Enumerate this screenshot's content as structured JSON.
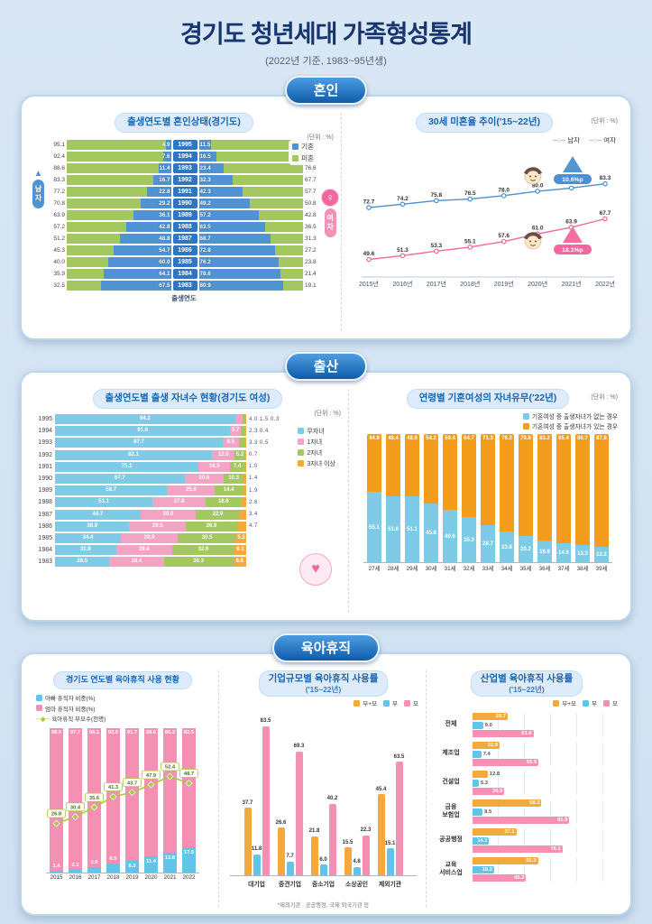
{
  "page": {
    "title": "경기도 청년세대 가족형성통계",
    "subtitle": "(2022년 기준, 1983~95년생)"
  },
  "sections": {
    "marriage_badge": "혼인",
    "birth_badge": "출산",
    "leave_badge": "육아휴직"
  },
  "icons": {
    "male_arrow": "▲",
    "female_symbol": "♀",
    "family_heart": "♥",
    "line_circle_marker": "─○─",
    "line_diamond_marker": "─◆─"
  },
  "colors": {
    "married_blue": "#4f93d4",
    "unmarried_green": "#a3c85f",
    "male_line": "#4a90d2",
    "female_line": "#f2679d",
    "no_child_blue": "#7ecbe8",
    "child1_pink": "#f3a3c3",
    "child2_green": "#a3c85f",
    "child3_orange": "#f6a93b",
    "has_child_orange": "#f49d1d",
    "father_blue": "#62c4e8",
    "mother_pink": "#f590b5",
    "parents_line_green": "#a9c83d",
    "both_orange": "#f6a93b"
  },
  "chart_data": [
    {
      "id": "marriage-status-by-birth-year",
      "type": "bar",
      "title": "출생연도별 혼인상태(경기도)",
      "unit": "(단위 : %)",
      "legend": [
        "기혼",
        "미혼"
      ],
      "left_group": "남자",
      "right_group": "여자",
      "xlabel": "출생연도",
      "rows": [
        {
          "year": "1995",
          "male_unmarried": 95.1,
          "male_married": 4.9,
          "female_married": 11.5,
          "female_unmarried": 88.5
        },
        {
          "year": "1994",
          "male_unmarried": 92.4,
          "male_married": 7.6,
          "female_married": 16.5,
          "female_unmarried": 83.4
        },
        {
          "year": "1993",
          "male_unmarried": 88.6,
          "male_married": 11.4,
          "female_married": 23.4,
          "female_unmarried": 76.6
        },
        {
          "year": "1992",
          "male_unmarried": 83.3,
          "male_married": 16.7,
          "female_married": 32.3,
          "female_unmarried": 67.7
        },
        {
          "year": "1991",
          "male_unmarried": 77.2,
          "male_married": 22.8,
          "female_married": 42.3,
          "female_unmarried": 57.7
        },
        {
          "year": "1990",
          "male_unmarried": 70.8,
          "male_married": 29.2,
          "female_married": 49.2,
          "female_unmarried": 50.8
        },
        {
          "year": "1989",
          "male_unmarried": 63.9,
          "male_married": 36.1,
          "female_married": 57.2,
          "female_unmarried": 42.8
        },
        {
          "year": "1988",
          "male_unmarried": 57.2,
          "male_married": 42.8,
          "female_married": 63.5,
          "female_unmarried": 36.5
        },
        {
          "year": "1987",
          "male_unmarried": 51.2,
          "male_married": 48.8,
          "female_married": 68.7,
          "female_unmarried": 31.3
        },
        {
          "year": "1986",
          "male_unmarried": 45.3,
          "male_married": 54.7,
          "female_married": 72.8,
          "female_unmarried": 27.2
        },
        {
          "year": "1985",
          "male_unmarried": 40.0,
          "male_married": 60.0,
          "female_married": 76.2,
          "female_unmarried": 23.8
        },
        {
          "year": "1984",
          "male_unmarried": 35.9,
          "male_married": 64.1,
          "female_married": 78.6,
          "female_unmarried": 21.4
        },
        {
          "year": "1983",
          "male_unmarried": 32.5,
          "male_married": 67.5,
          "female_married": 80.9,
          "female_unmarried": 19.1
        }
      ]
    },
    {
      "id": "unmarried-rate-age30-trend",
      "type": "line",
      "title": "30세 미혼율 추이('15~22년)",
      "unit": "(단위 : %)",
      "x": [
        "2015년",
        "2016년",
        "2017년",
        "2018년",
        "2019년",
        "2020년",
        "2021년",
        "2022년"
      ],
      "series": [
        {
          "name": "남자",
          "values": [
            72.7,
            74.2,
            75.8,
            76.5,
            78.0,
            80.0,
            81.4,
            83.3
          ]
        },
        {
          "name": "여자",
          "values": [
            49.6,
            51.3,
            53.3,
            55.1,
            57.6,
            61.0,
            63.9,
            67.7
          ]
        }
      ],
      "annotations": [
        {
          "target": "남자",
          "label": "10.6%p"
        },
        {
          "target": "여자",
          "label": "18.1%p"
        }
      ],
      "ylim": [
        45,
        90
      ]
    },
    {
      "id": "children-count-by-birth-year",
      "type": "bar",
      "title": "출생연도별 출생 자녀수 현황(경기도 여성)",
      "unit": "(단위 : %)",
      "legend": [
        "무자녀",
        "1자녀",
        "2자녀",
        "3자녀 이상"
      ],
      "categories": [
        "1995",
        "1994",
        "1993",
        "1992",
        "1991",
        "1990",
        "1989",
        "1988",
        "1987",
        "1986",
        "1985",
        "1984",
        "1983"
      ],
      "values": [
        [
          94.2,
          4.0,
          1.5,
          0.3
        ],
        [
          91.6,
          5.7,
          2.3,
          0.4
        ],
        [
          87.7,
          8.5,
          3.3,
          0.5
        ],
        [
          82.1,
          12.0,
          5.2,
          0.7
        ],
        [
          75.1,
          16.5,
          7.4,
          1.0
        ],
        [
          67.7,
          20.6,
          10.3,
          1.4
        ],
        [
          58.7,
          25.0,
          14.4,
          1.9
        ],
        [
          51.1,
          27.8,
          18.6,
          2.6
        ],
        [
          44.7,
          29.0,
          22.9,
          3.4
        ],
        [
          38.9,
          29.5,
          26.9,
          4.7
        ],
        [
          34.4,
          29.9,
          30.5,
          5.2
        ],
        [
          31.9,
          29.4,
          32.6,
          6.1
        ],
        [
          28.5,
          28.4,
          36.3,
          6.8
        ]
      ]
    },
    {
      "id": "married-women-children-by-age",
      "type": "bar",
      "title": "연령별 기혼여성의 자녀유무('22년)",
      "unit": "(단위 : %)",
      "legend": [
        "기혼여성 중 출생자녀가 없는 경우",
        "기혼여성 중 출생자녀가 있는 경우"
      ],
      "categories": [
        "27세",
        "28세",
        "29세",
        "30세",
        "31세",
        "32세",
        "33세",
        "34세",
        "35세",
        "36세",
        "37세",
        "38세",
        "39세"
      ],
      "series": [
        {
          "name": "출생자녀 없음",
          "values": [
            55.1,
            51.6,
            51.1,
            45.8,
            40.6,
            35.3,
            28.7,
            23.8,
            20.2,
            16.8,
            14.6,
            13.3,
            12.2
          ]
        },
        {
          "name": "출생자녀 있음",
          "values": [
            44.9,
            48.4,
            48.9,
            54.2,
            59.4,
            64.7,
            71.3,
            76.2,
            79.8,
            83.2,
            85.4,
            86.7,
            87.8
          ]
        }
      ]
    },
    {
      "id": "gyeonggi-parental-leave-by-year",
      "type": "bar",
      "title": "경기도 연도별 육아휴직 사용 현황",
      "legend": [
        "아빠 휴직자 비중(%)",
        "엄마 휴직자 비중(%)",
        "육아휴직 부모수(천명)"
      ],
      "categories": [
        "2015",
        "2016",
        "2017",
        "2018",
        "2019",
        "2020",
        "2021",
        "2022"
      ],
      "father_share": [
        1.4,
        2.3,
        3.9,
        6.5,
        8.3,
        11.4,
        13.8,
        17.5
      ],
      "mother_share": [
        98.6,
        97.7,
        96.1,
        93.5,
        91.7,
        88.6,
        86.2,
        82.5
      ],
      "parents_thousands": [
        26.8,
        30.4,
        35.6,
        41.3,
        43.7,
        47.9,
        52.4,
        48.7
      ]
    },
    {
      "id": "leave-usage-by-company-size",
      "type": "bar",
      "title": "기업규모별 육아휴직 사용률",
      "subtitle": "('15~22년)",
      "legend": [
        "부+모",
        "부",
        "모"
      ],
      "categories": [
        "대기업",
        "중견기업",
        "중소기업",
        "소상공인",
        "제외기관"
      ],
      "series": [
        {
          "name": "부+모",
          "values": [
            37.7,
            26.6,
            21.8,
            15.5,
            45.4
          ]
        },
        {
          "name": "부",
          "values": [
            11.8,
            7.7,
            6.0,
            4.8,
            15.1
          ]
        },
        {
          "name": "모",
          "values": [
            83.5,
            69.3,
            40.2,
            22.3,
            63.5
          ]
        }
      ],
      "footnote": "*제외기관 : 공공행정, 국제 외국기관 등",
      "ylim": [
        0,
        90
      ]
    },
    {
      "id": "leave-usage-by-industry",
      "type": "bar",
      "title": "산업별 육아휴직 사용률",
      "subtitle": "('15~22년)",
      "legend": [
        "부+모",
        "부",
        "모"
      ],
      "categories": [
        "전체",
        "제조업",
        "건설업",
        "금융\n보험업",
        "공공행정",
        "교육\n서비스업"
      ],
      "series": [
        {
          "name": "부+모",
          "values": [
            29.7,
            22.9,
            12.8,
            58.3,
            37.1,
            55.3
          ]
        },
        {
          "name": "부",
          "values": [
            9.0,
            7.4,
            5.3,
            8.5,
            14.1,
            18.2
          ]
        },
        {
          "name": "모",
          "values": [
            51.6,
            55.9,
            26.9,
            81.9,
            76.1,
            45.3
          ]
        }
      ],
      "ylim": [
        0,
        90
      ]
    }
  ]
}
